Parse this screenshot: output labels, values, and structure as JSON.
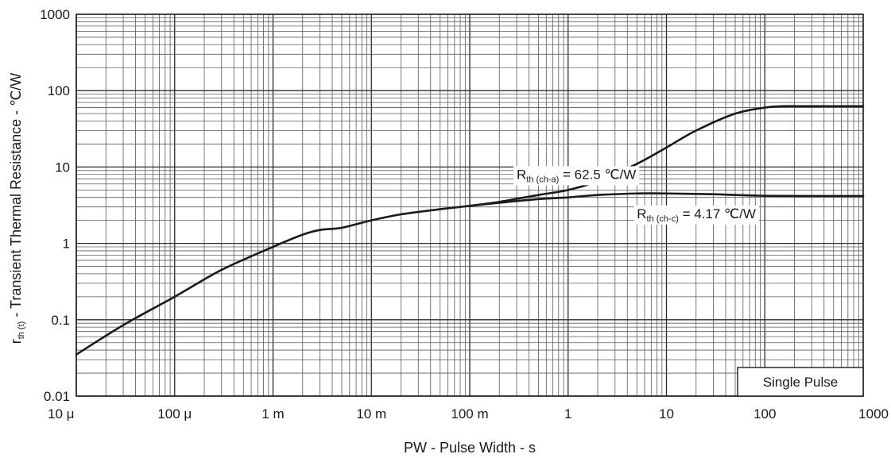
{
  "chart_data": {
    "type": "line",
    "x_scale": "log",
    "y_scale": "log",
    "xlim": [
      1e-05,
      1000
    ],
    "ylim": [
      0.01,
      1000
    ],
    "grid": true,
    "xlabel": "PW - Pulse Width - s",
    "ylabel": {
      "main": "r",
      "sub": "th (t)",
      "rest": " - Transient Thermal Resistance - ℃/W"
    },
    "x_ticks": [
      {
        "value": 1e-05,
        "label": "10 μ"
      },
      {
        "value": 0.0001,
        "label": "100 μ"
      },
      {
        "value": 0.001,
        "label": "1 m"
      },
      {
        "value": 0.01,
        "label": "10 m"
      },
      {
        "value": 0.1,
        "label": "100 m"
      },
      {
        "value": 1,
        "label": "1"
      },
      {
        "value": 10,
        "label": "10"
      },
      {
        "value": 100,
        "label": "100"
      },
      {
        "value": 1000,
        "label": "1000"
      }
    ],
    "y_ticks": [
      {
        "value": 0.01,
        "label": "0.01"
      },
      {
        "value": 0.1,
        "label": "0.1"
      },
      {
        "value": 1,
        "label": "1"
      },
      {
        "value": 10,
        "label": "10"
      },
      {
        "value": 100,
        "label": "100"
      },
      {
        "value": 1000,
        "label": "1000"
      }
    ],
    "series": [
      {
        "key": "ch-a",
        "color": "#1a1a1a",
        "x": [
          1e-05,
          3e-05,
          0.0001,
          0.0003,
          0.001,
          0.002,
          0.003,
          0.005,
          0.01,
          0.02,
          0.05,
          0.1,
          0.2,
          0.5,
          1,
          2,
          5,
          10,
          20,
          50,
          100,
          150,
          300,
          1000
        ],
        "y": [
          0.035,
          0.085,
          0.2,
          0.45,
          0.9,
          1.3,
          1.5,
          1.6,
          2.0,
          2.4,
          2.8,
          3.1,
          3.5,
          4.3,
          5.0,
          6.5,
          11.0,
          18.0,
          30.0,
          50.0,
          60.0,
          62.5,
          62.5,
          62.5
        ]
      },
      {
        "key": "ch-c",
        "color": "#1a1a1a",
        "x": [
          0.1,
          0.2,
          0.5,
          1,
          2,
          5,
          10,
          30,
          100,
          1000
        ],
        "y": [
          3.1,
          3.4,
          3.8,
          4.0,
          4.3,
          4.5,
          4.5,
          4.4,
          4.2,
          4.17
        ]
      }
    ],
    "annotations": {
      "ch_a": {
        "main": "R",
        "sub": "th (ch-a)",
        "rest": " = 62.5 ℃/W"
      },
      "ch_c": {
        "main": "R",
        "sub": "th (ch-c)",
        "rest": " = 4.17 ℃/W"
      }
    },
    "legend_box": {
      "text": "Single Pulse",
      "placement": "bottom-right"
    }
  }
}
